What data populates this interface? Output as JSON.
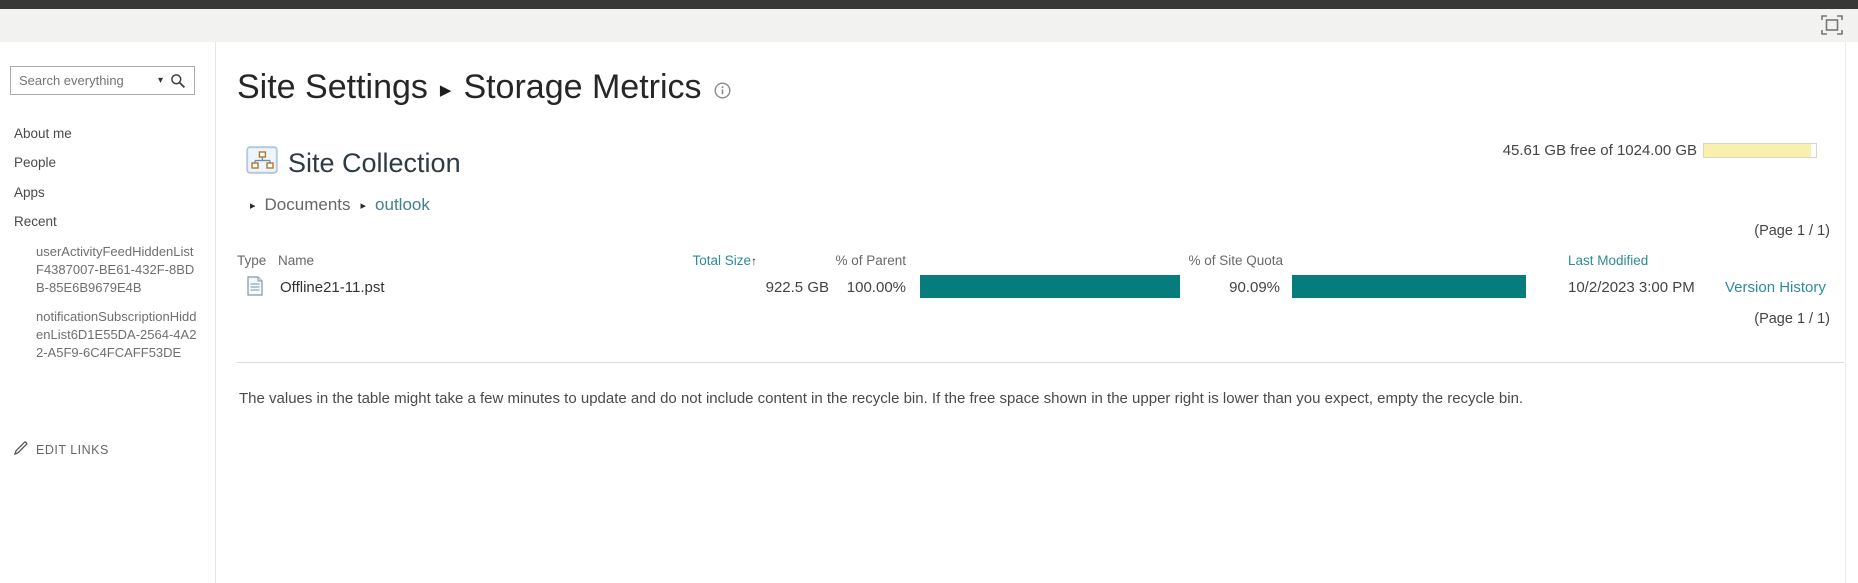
{
  "icons": {
    "search_caret": "▾",
    "breadcrumb_arrow": "▸",
    "title_separator": "▶",
    "sort_asc": "↑"
  },
  "colors": {
    "accent_teal_bar": "#077c7c",
    "link_teal": "#2e8b9a",
    "storage_yellow": "#faf0ae",
    "suite_bar": "#383838"
  },
  "sidebar": {
    "search": {
      "placeholder": "Search everything"
    },
    "items": [
      {
        "label": "About me"
      },
      {
        "label": "People"
      },
      {
        "label": "Apps"
      },
      {
        "label": "Recent"
      }
    ],
    "recent_items": [
      "userActivityFeedHiddenListF4387007-BE61-432F-8BDB-85E6B9679E4B",
      "notificationSubscriptionHiddenList6D1E55DA-2564-4A22-A5F9-6C4FCAFF53DE"
    ],
    "edit_links_label": "EDIT LINKS"
  },
  "header": {
    "title_primary": "Site Settings",
    "title_secondary": "Storage Metrics"
  },
  "storage_summary": {
    "text": "45.61 GB free of 1024.00 GB",
    "used_percent": 95.5
  },
  "collection": {
    "title": "Site Collection",
    "breadcrumb": [
      "Documents",
      "outlook"
    ]
  },
  "pagination": {
    "label": "(Page 1 / 1)"
  },
  "table": {
    "headers": {
      "type": "Type",
      "name": "Name",
      "total_size": "Total Size",
      "percent_parent": "% of Parent",
      "percent_quota": "% of Site Quota",
      "last_modified": "Last Modified"
    },
    "rows": [
      {
        "name": "Offline21-11.pst",
        "total_size": "922.5 GB",
        "percent_parent": "100.00%",
        "percent_parent_value": 100,
        "percent_quota": "90.09%",
        "percent_quota_value": 90.09,
        "last_modified": "10/2/2023 3:00 PM",
        "action": "Version History"
      }
    ]
  },
  "footer_note": "The values in the table might take a few minutes to update and do not include content in the recycle bin. If the free space shown in the upper right is lower than you expect, empty the recycle bin."
}
